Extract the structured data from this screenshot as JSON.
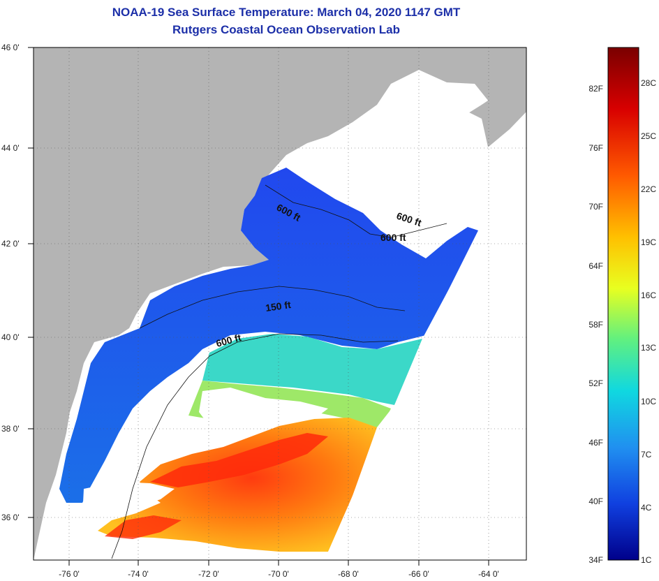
{
  "header": {
    "title": "NOAA-19 Sea Surface Temperature:  March 04, 2020 1147 GMT",
    "subtitle": "Rutgers Coastal Ocean Observation Lab"
  },
  "map": {
    "lon_ticks": [
      "-76 0'",
      "-74 0'",
      "-72 0'",
      "-70 0'",
      "-68 0'",
      "-66 0'",
      "-64 0'"
    ],
    "lat_ticks": [
      "46 0'",
      "44 0'",
      "42 0'",
      "40 0'",
      "38 0'",
      "36 0'"
    ],
    "contour_labels": [
      "600 ft",
      "600 ft",
      "600 ft",
      "150 ft",
      "600 ft"
    ],
    "colors": {
      "land": "#b4b4b4",
      "cloud": "#ffffff",
      "cold": "#2a55f0",
      "cool": "#2fe0d8",
      "warm": "#ffb020",
      "hot": "#ff3010"
    }
  },
  "colorbar": {
    "fahrenheit_labels": [
      "82F",
      "76F",
      "70F",
      "64F",
      "58F",
      "52F",
      "46F",
      "40F",
      "34F"
    ],
    "celsius_labels": [
      "28C",
      "25C",
      "22C",
      "19C",
      "16C",
      "13C",
      "10C",
      "7C",
      "4C",
      "1C"
    ]
  }
}
